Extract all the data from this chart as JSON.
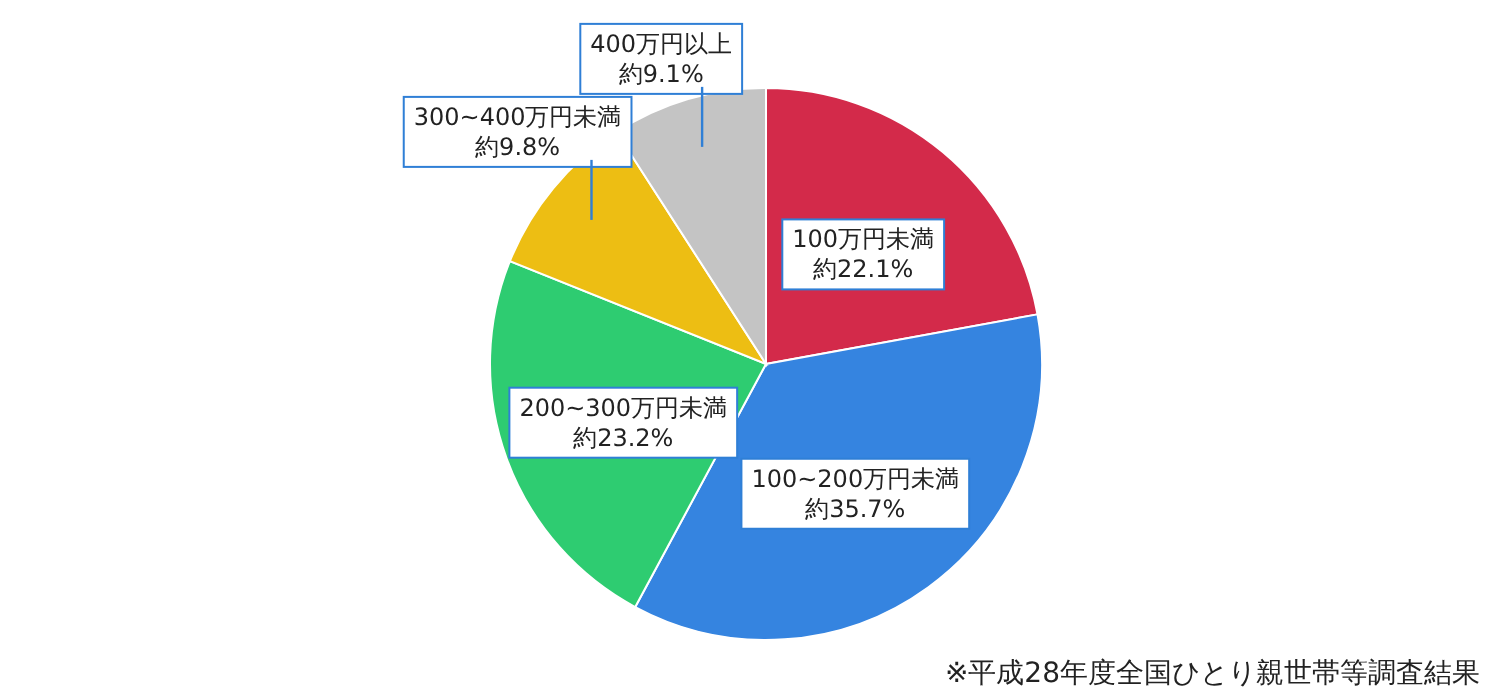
{
  "chart_data": {
    "type": "pie",
    "categories": [
      "100万円未満",
      "100~200万円未満",
      "200~300万円未満",
      "300~400万円未満",
      "400万円以上"
    ],
    "values": [
      22.1,
      35.7,
      23.2,
      9.8,
      9.1
    ],
    "value_labels": [
      "約22.1%",
      "約35.7%",
      "約23.2%",
      "約9.8%",
      "約9.1%"
    ],
    "colors": [
      "#d32a4a",
      "#3584e0",
      "#2ecc71",
      "#edbe13",
      "#c4c4c4"
    ],
    "annotations": [
      "※平成28年度全国ひとり親世帯等調査結果"
    ]
  }
}
